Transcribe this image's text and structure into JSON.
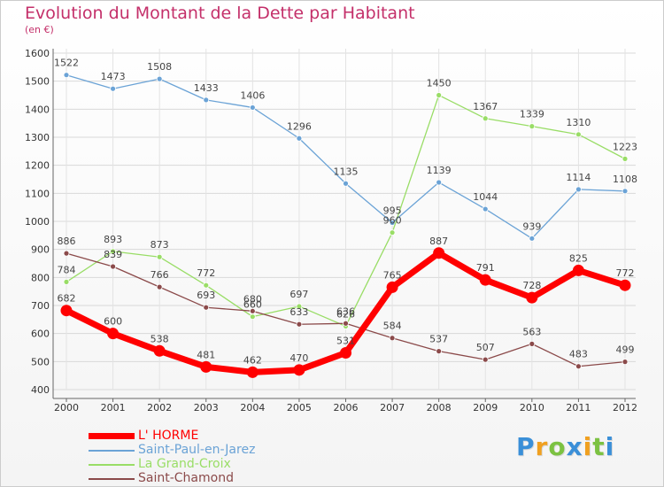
{
  "chart_data": {
    "type": "line",
    "title": "Evolution du Montant de la Dette par Habitant",
    "subtitle": "(en €)",
    "xlabel": "",
    "ylabel": "",
    "x": [
      "2000",
      "2001",
      "2002",
      "2003",
      "2004",
      "2005",
      "2006",
      "2007",
      "2008",
      "2009",
      "2010",
      "2011",
      "2012"
    ],
    "ylim": [
      400,
      1600
    ],
    "yticks": [
      400,
      500,
      600,
      700,
      800,
      900,
      1000,
      1100,
      1200,
      1300,
      1400,
      1500,
      1600
    ],
    "grid": true,
    "legend_position": "bottom-left",
    "series": [
      {
        "name": "L' HORME",
        "color": "#ff0000",
        "values": [
          682,
          600,
          538,
          481,
          462,
          470,
          531,
          765,
          887,
          791,
          728,
          825,
          772
        ]
      },
      {
        "name": "Saint-Paul-en-Jarez",
        "color": "#6ba3d6",
        "values": [
          1522,
          1473,
          1508,
          1433,
          1406,
          1296,
          1135,
          995,
          1139,
          1044,
          939,
          1114,
          1108
        ]
      },
      {
        "name": "La Grand-Croix",
        "color": "#99dd66",
        "values": [
          784,
          893,
          873,
          772,
          660,
          697,
          626,
          960,
          1450,
          1367,
          1339,
          1310,
          1223
        ]
      },
      {
        "name": "Saint-Chamond",
        "color": "#8b4a4a",
        "values": [
          886,
          839,
          766,
          693,
          680,
          633,
          636,
          584,
          537,
          507,
          563,
          483,
          499
        ]
      }
    ]
  },
  "logo": {
    "letters": [
      "P",
      "r",
      "o",
      "x",
      "i",
      "t",
      "i"
    ],
    "colors": [
      "#3a8fd8",
      "#f0a020",
      "#7cc242",
      "#3a8fd8",
      "#f0a020",
      "#7cc242",
      "#3a8fd8"
    ]
  }
}
